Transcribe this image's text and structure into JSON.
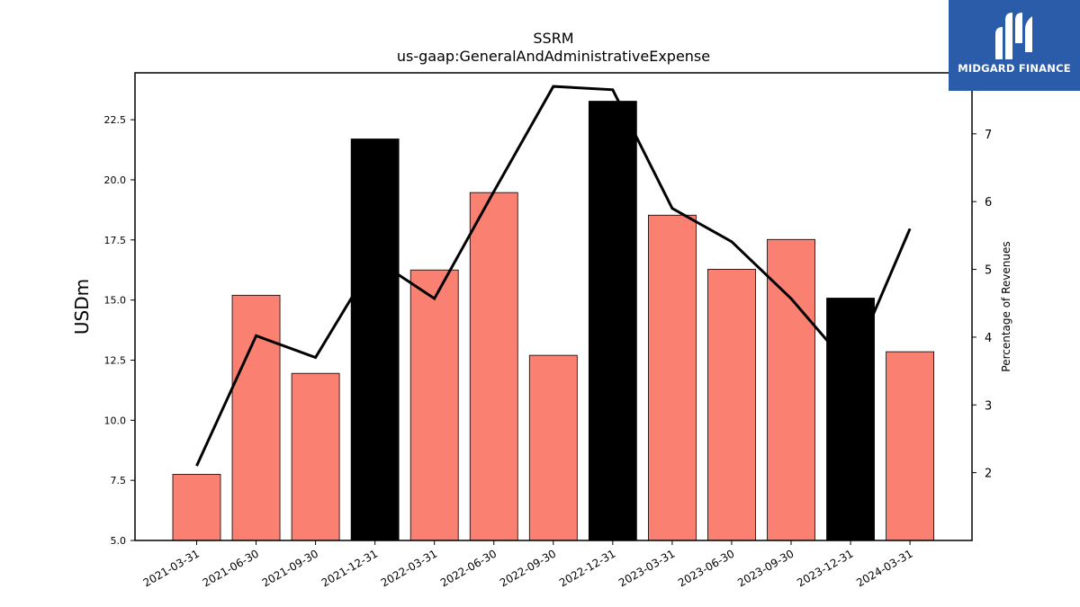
{
  "chart_data": {
    "type": "bar+line",
    "title": "SSRM",
    "subtitle": "us-gaap:GeneralAndAdministrativeExpense",
    "ylabel": "USDm",
    "y2label": "Percentage of Revenues",
    "categories": [
      "2021-03-31",
      "2021-06-30",
      "2021-09-30",
      "2021-12-31",
      "2022-03-31",
      "2022-06-30",
      "2022-09-30",
      "2022-12-31",
      "2023-03-31",
      "2023-06-30",
      "2023-09-30",
      "2023-12-31",
      "2024-03-31"
    ],
    "bars": {
      "values": [
        7.75,
        15.2,
        11.95,
        21.7,
        16.25,
        19.47,
        12.7,
        23.27,
        18.53,
        16.28,
        17.52,
        15.08,
        12.85
      ],
      "colors": [
        "#fa8072",
        "#fa8072",
        "#fa8072",
        "#000000",
        "#fa8072",
        "#fa8072",
        "#fa8072",
        "#000000",
        "#fa8072",
        "#fa8072",
        "#fa8072",
        "#000000",
        "#fa8072"
      ]
    },
    "line": {
      "values": [
        2.1,
        4.02,
        3.7,
        5.15,
        4.57,
        6.15,
        7.7,
        7.65,
        5.9,
        5.41,
        4.57,
        3.55,
        5.6
      ],
      "color": "#000000"
    },
    "ylim": [
      5.0,
      24.45
    ],
    "y2lim": [
      1.0,
      7.9
    ],
    "yticks": [
      "5.0",
      "7.5",
      "10.0",
      "12.5",
      "15.0",
      "17.5",
      "20.0",
      "22.5"
    ],
    "y2ticks": [
      "2",
      "3",
      "4",
      "5",
      "6",
      "7"
    ],
    "grid": false
  },
  "logo": {
    "text": "MIDGARD FINANCE",
    "bg": "#2b5caa"
  }
}
